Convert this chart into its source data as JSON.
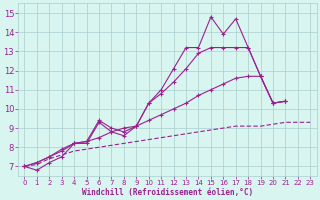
{
  "x": [
    0,
    1,
    2,
    3,
    4,
    5,
    6,
    7,
    8,
    9,
    10,
    11,
    12,
    13,
    14,
    15,
    16,
    17,
    18,
    19,
    20,
    21,
    22,
    23
  ],
  "line1": [
    7.0,
    6.8,
    7.2,
    7.5,
    8.2,
    8.2,
    9.3,
    8.8,
    8.6,
    9.1,
    10.3,
    11.0,
    12.1,
    13.2,
    13.2,
    14.8,
    13.9,
    14.7,
    13.2,
    11.7,
    10.3,
    10.4,
    null,
    null
  ],
  "line2": [
    7.0,
    7.2,
    7.5,
    7.9,
    8.2,
    8.3,
    9.4,
    9.0,
    8.8,
    9.1,
    10.3,
    10.8,
    11.4,
    12.1,
    12.9,
    13.2,
    13.2,
    13.2,
    13.2,
    11.7,
    10.3,
    10.4,
    null,
    null
  ],
  "line3": [
    7.0,
    7.2,
    7.5,
    7.8,
    8.2,
    8.3,
    8.5,
    8.8,
    9.0,
    9.1,
    9.4,
    9.7,
    10.0,
    10.3,
    10.7,
    11.0,
    11.3,
    11.6,
    11.7,
    11.7,
    10.3,
    10.4,
    null,
    null
  ],
  "line5": [
    7.0,
    7.1,
    7.4,
    7.6,
    7.8,
    7.9,
    8.0,
    8.1,
    8.2,
    8.3,
    8.4,
    8.5,
    8.6,
    8.7,
    8.8,
    8.9,
    9.0,
    9.1,
    9.1,
    9.1,
    9.2,
    9.3,
    9.3,
    9.3
  ],
  "color": "#9b2090",
  "bg_color": "#d8f5f0",
  "grid_color": "#aacfcf",
  "ylim": [
    6.5,
    15.5
  ],
  "xlim": [
    -0.5,
    23.5
  ],
  "xlabel": "Windchill (Refroidissement éolien,°C)",
  "yticks": [
    7,
    8,
    9,
    10,
    11,
    12,
    13,
    14,
    15
  ],
  "xticks": [
    0,
    1,
    2,
    3,
    4,
    5,
    6,
    7,
    8,
    9,
    10,
    11,
    12,
    13,
    14,
    15,
    16,
    17,
    18,
    19,
    20,
    21,
    22,
    23
  ]
}
